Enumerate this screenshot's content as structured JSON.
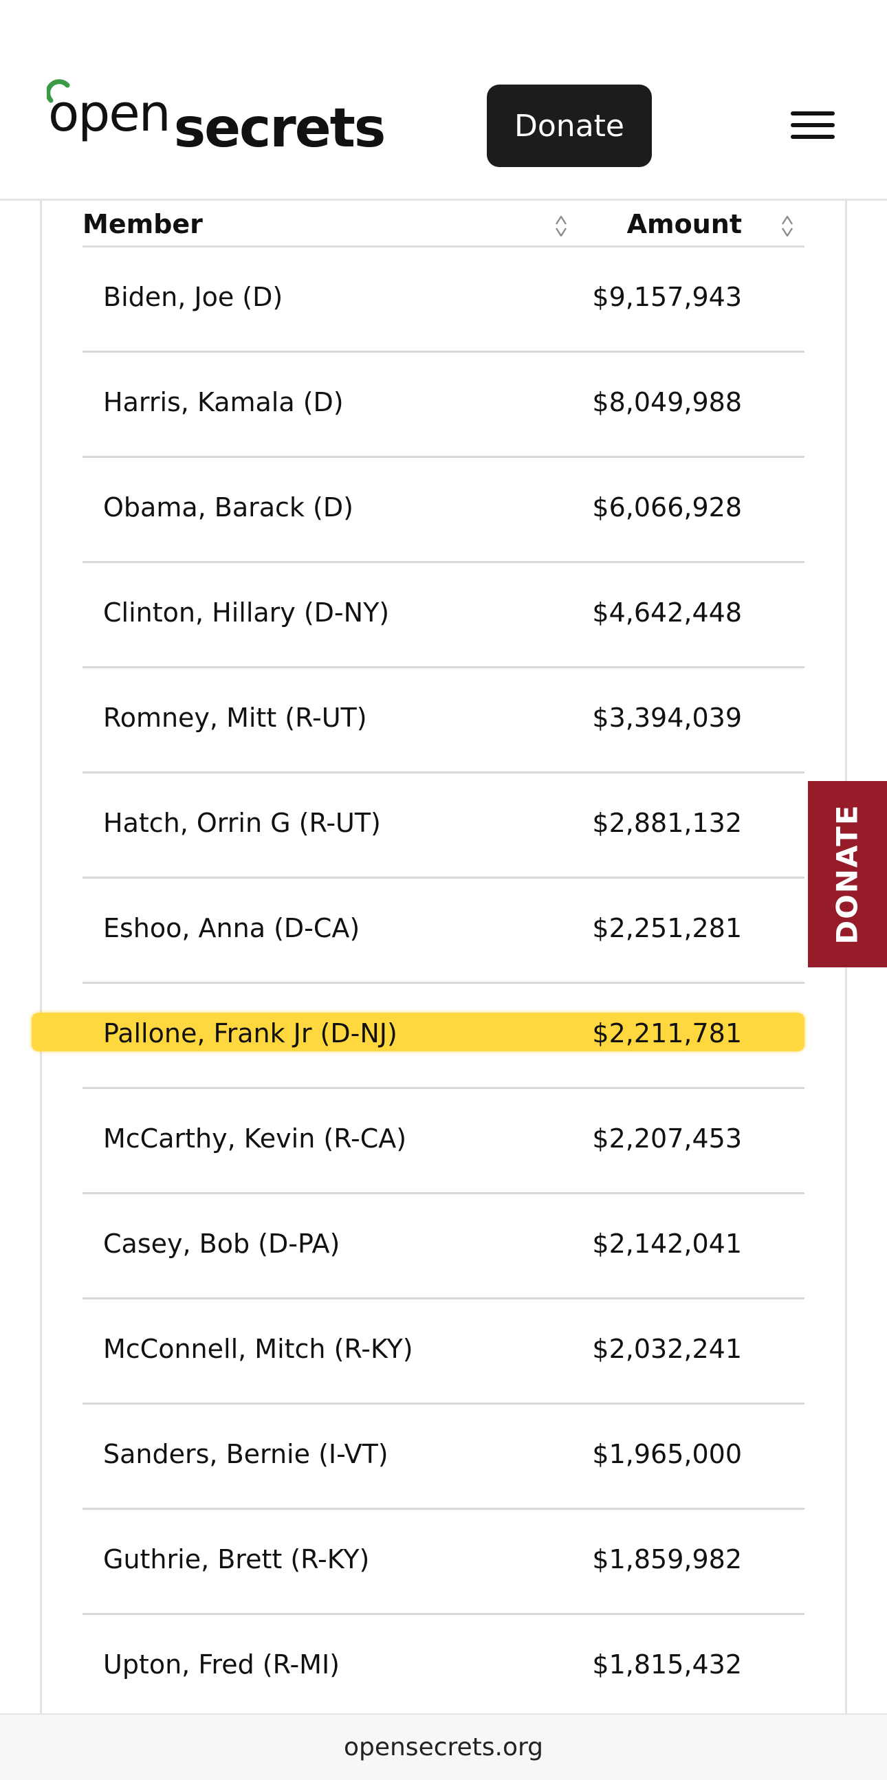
{
  "header": {
    "logo_open": "open",
    "logo_secrets": "secrets",
    "donate_label": "Donate",
    "menu_icon": "hamburger-menu-icon",
    "logo_accent_color": "#3a9a45"
  },
  "table": {
    "columns": [
      "Member",
      "Amount"
    ],
    "sort_icon": "sort-arrows-icon",
    "rows": [
      {
        "member": "Biden, Joe (D)",
        "amount": "$9,157,943"
      },
      {
        "member": "Harris, Kamala (D)",
        "amount": "$8,049,988"
      },
      {
        "member": "Obama, Barack (D)",
        "amount": "$6,066,928"
      },
      {
        "member": "Clinton, Hillary (D-NY)",
        "amount": "$4,642,448"
      },
      {
        "member": "Romney, Mitt (R-UT)",
        "amount": "$3,394,039"
      },
      {
        "member": "Hatch, Orrin G (R-UT)",
        "amount": "$2,881,132"
      },
      {
        "member": "Eshoo, Anna (D-CA)",
        "amount": "$2,251,281"
      },
      {
        "member": "Pallone, Frank Jr (D-NJ)",
        "amount": "$2,211,781",
        "highlighted": true
      },
      {
        "member": "McCarthy, Kevin (R-CA)",
        "amount": "$2,207,453"
      },
      {
        "member": "Casey, Bob (D-PA)",
        "amount": "$2,142,041"
      },
      {
        "member": "McConnell, Mitch (R-KY)",
        "amount": "$2,032,241"
      },
      {
        "member": "Sanders, Bernie (I-VT)",
        "amount": "$1,965,000"
      },
      {
        "member": "Guthrie, Brett (R-KY)",
        "amount": "$1,859,982"
      },
      {
        "member": "Upton, Fred (R-MI)",
        "amount": "$1,815,432"
      }
    ],
    "highlight_color": "#ffd73e"
  },
  "side_donate": {
    "label": "DONATE",
    "color": "#961c29"
  },
  "browser": {
    "url": "opensecrets.org"
  }
}
